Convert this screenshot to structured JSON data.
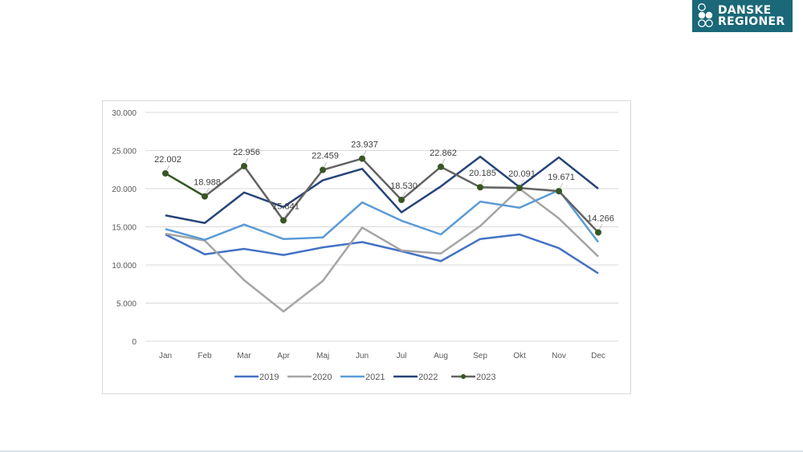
{
  "logo": {
    "line1": "DANSKE",
    "line2": "REGIONER",
    "color": "#1a6878"
  },
  "chart_data": {
    "type": "line",
    "title": "",
    "xlabel": "",
    "ylabel": "",
    "ylim": [
      0,
      30000
    ],
    "yticks": [
      0,
      5000,
      10000,
      15000,
      20000,
      25000,
      30000
    ],
    "ytick_labels": [
      "0",
      "5.000",
      "10.000",
      "15.000",
      "20.000",
      "25.000",
      "30.000"
    ],
    "grid": true,
    "legend_position": "bottom",
    "categories": [
      "Jan",
      "Feb",
      "Mar",
      "Apr",
      "Maj",
      "Jun",
      "Jul",
      "Aug",
      "Sep",
      "Okt",
      "Nov",
      "Dec"
    ],
    "series": [
      {
        "name": "2019",
        "color": "#4472c4",
        "markers": false,
        "values": [
          14000,
          11400,
          12100,
          11300,
          12300,
          13000,
          11800,
          10500,
          13400,
          14000,
          12200,
          8900
        ]
      },
      {
        "name": "2020",
        "color": "#a5a5a5",
        "markers": false,
        "values": [
          14100,
          13200,
          8000,
          3900,
          7900,
          14900,
          11900,
          11500,
          15100,
          20000,
          16100,
          11100
        ]
      },
      {
        "name": "2021",
        "color": "#5b9bd5",
        "markers": false,
        "values": [
          14700,
          13300,
          15300,
          13400,
          13600,
          18200,
          15800,
          14000,
          18300,
          17500,
          19800,
          13000
        ]
      },
      {
        "name": "2022",
        "color": "#264478",
        "markers": false,
        "values": [
          16500,
          15500,
          19500,
          17600,
          21100,
          22600,
          16900,
          20300,
          24200,
          20200,
          24100,
          20000
        ]
      },
      {
        "name": "2023",
        "color": "#636363",
        "first_segment_color": "#375623",
        "marker_color": "#375623",
        "markers": true,
        "values": [
          22002,
          18988,
          22956,
          15841,
          22459,
          23937,
          18530,
          22862,
          20185,
          20091,
          19671,
          14266
        ],
        "data_labels": [
          "22.002",
          "18.988",
          "22.956",
          "15.841",
          "22.459",
          "23.937",
          "18.530",
          "22.862",
          "20.185",
          "20.091",
          "19.671",
          "14.266"
        ]
      }
    ]
  }
}
